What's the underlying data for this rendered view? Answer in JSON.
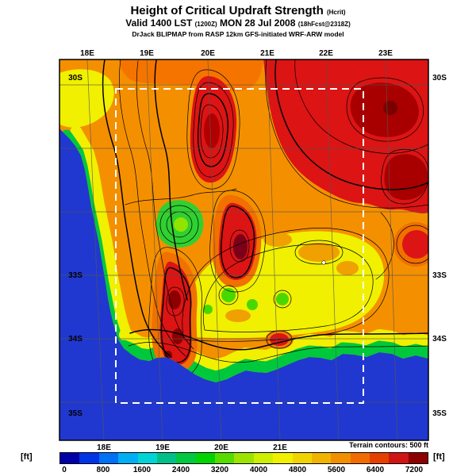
{
  "header": {
    "title": "Height of Critical Updraft Strength",
    "title_unit": "(Hcrit)",
    "valid": {
      "prefix": "Valid 1400 LST",
      "init": "(1200Z)",
      "date": "MON 28 Jul 2008",
      "fcst": "(18hFcst@2318Z)"
    },
    "model_line": "DrJack BLIPMAP from RASP 12km GFS-initiated WRF-ARW model"
  },
  "map": {
    "top_axis": [
      "18E",
      "19E",
      "20E",
      "21E",
      "22E",
      "23E"
    ],
    "bottom_axis": [
      "18E",
      "19E",
      "20E",
      "21E"
    ],
    "left_axis": [
      "30S",
      "33S",
      "34S",
      "35S"
    ],
    "right_axis": [
      "30S",
      "33S",
      "34S",
      "35S"
    ],
    "terrain_note": "Terrain contours: 500 ft"
  },
  "colorbar": {
    "unit_left": "[ft]",
    "unit_right": "[ft]",
    "ticks": [
      "0",
      "800",
      "1600",
      "2400",
      "3200",
      "4000",
      "4800",
      "5600",
      "6400",
      "7200"
    ],
    "colors": [
      "#0000a8",
      "#0034e4",
      "#0070f4",
      "#00aef4",
      "#00d4d4",
      "#00c088",
      "#00c840",
      "#00d400",
      "#58dc00",
      "#9ce400",
      "#ccf000",
      "#f0f000",
      "#f0d400",
      "#f0b400",
      "#f09000",
      "#f06c00",
      "#e44000",
      "#d01414",
      "#8c0000"
    ],
    "ocean_color": "#2038d0"
  }
}
